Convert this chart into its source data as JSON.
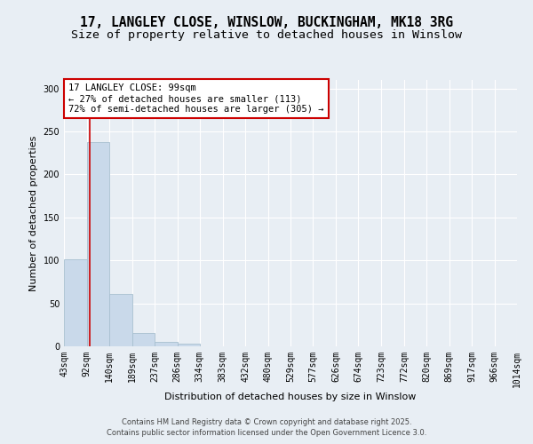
{
  "title_line1": "17, LANGLEY CLOSE, WINSLOW, BUCKINGHAM, MK18 3RG",
  "title_line2": "Size of property relative to detached houses in Winslow",
  "xlabel": "Distribution of detached houses by size in Winslow",
  "ylabel": "Number of detached properties",
  "bin_edges": [
    43,
    92,
    140,
    189,
    237,
    286,
    334,
    383,
    432,
    480,
    529,
    577,
    626,
    674,
    723,
    772,
    820,
    869,
    917,
    966,
    1014
  ],
  "bin_labels": [
    "43sqm",
    "92sqm",
    "140sqm",
    "189sqm",
    "237sqm",
    "286sqm",
    "334sqm",
    "383sqm",
    "432sqm",
    "480sqm",
    "529sqm",
    "577sqm",
    "626sqm",
    "674sqm",
    "723sqm",
    "772sqm",
    "820sqm",
    "869sqm",
    "917sqm",
    "966sqm",
    "1014sqm"
  ],
  "bar_heights": [
    101,
    238,
    61,
    16,
    5,
    3,
    0,
    0,
    0,
    0,
    0,
    0,
    0,
    0,
    0,
    0,
    0,
    0,
    0,
    0
  ],
  "bar_color": "#c9d9ea",
  "bar_edge_color": "#a8c0d0",
  "property_line_x": 99,
  "property_line_color": "#cc0000",
  "annotation_text": "17 LANGLEY CLOSE: 99sqm\n← 27% of detached houses are smaller (113)\n72% of semi-detached houses are larger (305) →",
  "annotation_box_color": "#ffffff",
  "annotation_box_edge": "#cc0000",
  "ylim": [
    0,
    310
  ],
  "yticks": [
    0,
    50,
    100,
    150,
    200,
    250,
    300
  ],
  "background_color": "#e8eef4",
  "plot_background": "#e8eef4",
  "grid_color": "#ffffff",
  "footer_line1": "Contains HM Land Registry data © Crown copyright and database right 2025.",
  "footer_line2": "Contains public sector information licensed under the Open Government Licence 3.0.",
  "title_fontsize": 10.5,
  "subtitle_fontsize": 9.5,
  "axis_label_fontsize": 8,
  "tick_fontsize": 7,
  "annotation_fontsize": 7.5,
  "footer_fontsize": 6
}
